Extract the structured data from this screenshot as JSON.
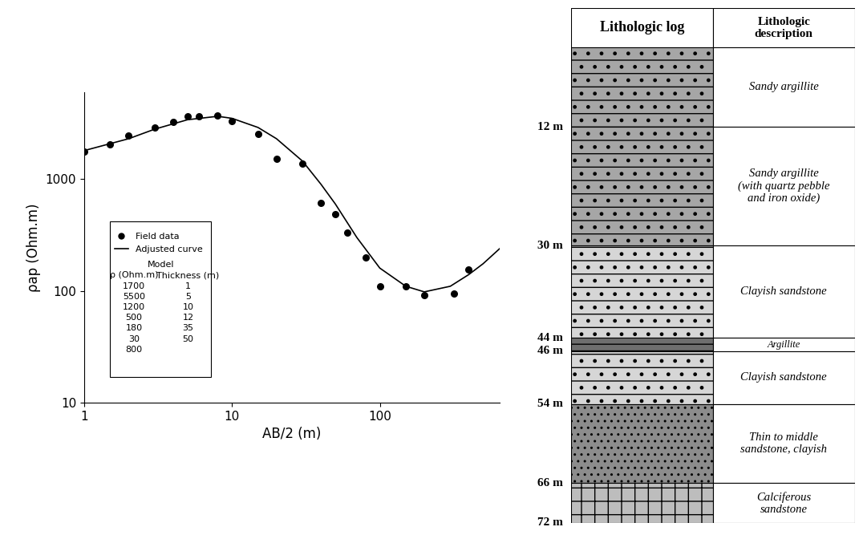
{
  "chart_data": {
    "type": "scatter",
    "log": true,
    "xlabel": "AB/2 (m)",
    "ylabel": "ρap (Ohm.m)",
    "xlim": [
      1,
      650
    ],
    "ylim": [
      10,
      6000
    ],
    "xticks": [
      1,
      10,
      100
    ],
    "yticks": [
      10,
      100,
      1000
    ],
    "grid": false,
    "legend": "lower left",
    "series": [
      {
        "name": "Field data",
        "type": "scatter",
        "marker": "o",
        "color": "#000000",
        "x": [
          1,
          1.5,
          2,
          3,
          4,
          5,
          6,
          8,
          10,
          15,
          20,
          30,
          40,
          50,
          60,
          80,
          100,
          150,
          200,
          316,
          400
        ],
        "values": [
          1760,
          2040,
          2440,
          2880,
          3240,
          3640,
          3650,
          3700,
          3300,
          2530,
          1510,
          1370,
          608,
          482,
          330,
          200,
          110,
          110,
          91,
          95,
          156
        ]
      },
      {
        "name": "Adjusted curve",
        "type": "line",
        "line_style": "solid",
        "color": "#000000",
        "x": [
          1,
          2,
          3,
          5,
          8,
          10,
          15,
          20,
          30,
          40,
          50,
          70,
          100,
          150,
          200,
          300,
          400,
          500,
          650
        ],
        "values": [
          1800,
          2300,
          2800,
          3400,
          3650,
          3500,
          2900,
          2300,
          1450,
          900,
          600,
          300,
          160,
          110,
          98,
          110,
          140,
          175,
          240
        ]
      }
    ],
    "model": {
      "title": "Model",
      "columns": [
        "ρ (Ohm.m)",
        "Thickness (m)"
      ],
      "rows": [
        [
          1700,
          1
        ],
        [
          5500,
          5
        ],
        [
          1200,
          10
        ],
        [
          500,
          12
        ],
        [
          180,
          35
        ],
        [
          30,
          50
        ],
        [
          800,
          null
        ]
      ]
    }
  },
  "lithologic_log": {
    "headers": [
      "Lithologic log",
      "Lithologic description"
    ],
    "depth_labels": [
      {
        "value": 12,
        "label": "12 m"
      },
      {
        "value": 30,
        "label": "30 m"
      },
      {
        "value": 44,
        "label": "44 m"
      },
      {
        "value": 46,
        "label": "46 m"
      },
      {
        "value": 54,
        "label": "54 m"
      },
      {
        "value": 66,
        "label": "66 m"
      },
      {
        "value": 72,
        "label": "72 m"
      }
    ],
    "layers": [
      {
        "top": 0,
        "bottom": 12,
        "description": "Sandy argillite",
        "color": "#a6a6a6"
      },
      {
        "top": 12,
        "bottom": 30,
        "description": "Sandy argillite (with quartz pebble and iron oxide)",
        "color": "#a6a6a6"
      },
      {
        "top": 30,
        "bottom": 44,
        "description": "Clayish sandstone",
        "color": "#d6d6d6"
      },
      {
        "top": 44,
        "bottom": 46,
        "description": "Argillite",
        "color": "#6e6e6e"
      },
      {
        "top": 46,
        "bottom": 54,
        "description": "Clayish sandstone",
        "color": "#d6d6d6"
      },
      {
        "top": 54,
        "bottom": 66,
        "description": "Thin to middle sandstone, clayish",
        "color": "#8c8c8c"
      },
      {
        "top": 66,
        "bottom": 72,
        "description": "Calciferous sandstone",
        "color": "#bdbdbd"
      }
    ]
  }
}
